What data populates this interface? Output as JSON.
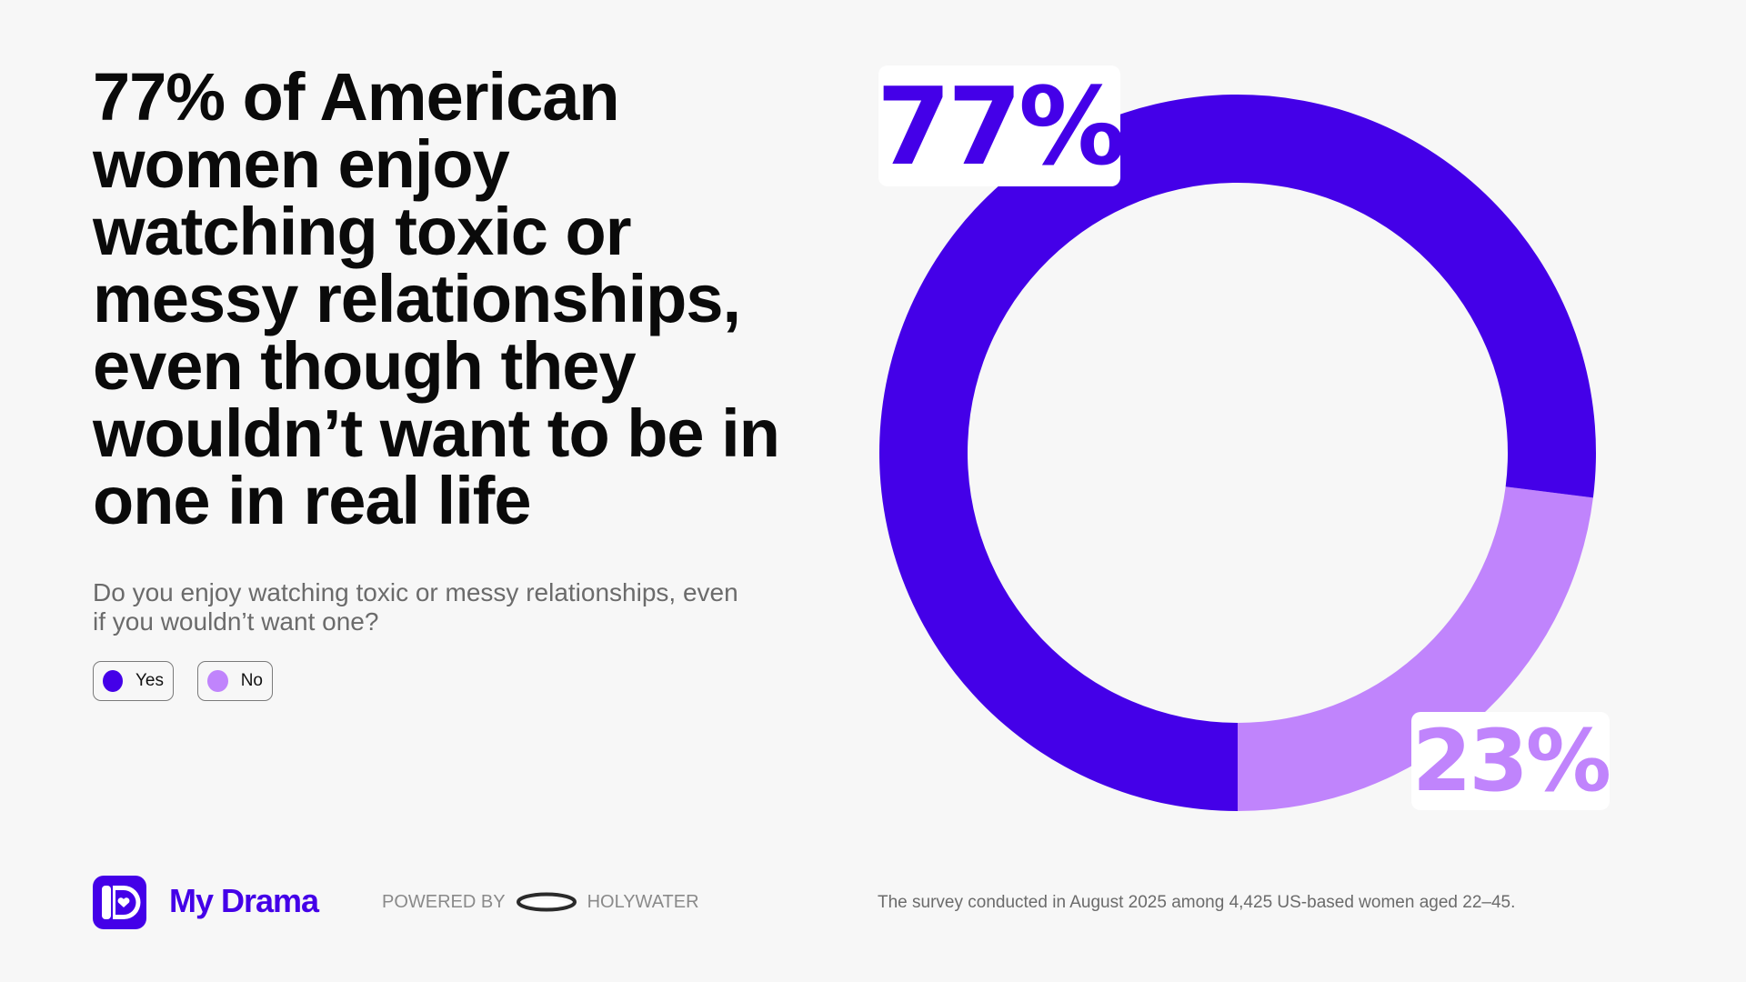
{
  "headline": "77% of American women enjoy watching toxic or messy relationships, even though they wouldn’t want to be in one in real life",
  "question": "Do you enjoy watching toxic or messy relationships, even if you wouldn’t want one?",
  "legend": [
    {
      "label": "Yes",
      "color": "#4400e8"
    },
    {
      "label": "No",
      "color": "#c084fc"
    }
  ],
  "chart_data": {
    "type": "pie",
    "title": "Do you enjoy watching toxic or messy relationships, even if you wouldn’t want one?",
    "categories": [
      "Yes",
      "No"
    ],
    "values": [
      77,
      23
    ],
    "colors": [
      "#4400e8",
      "#c084fc"
    ],
    "data_labels": [
      "77%",
      "23%"
    ]
  },
  "footer": {
    "brand": "My Drama",
    "powered_by": "POWERED BY",
    "partner": "HOLYWATER",
    "survey_note": "The survey conducted in August 2025 among 4,425 US-based women aged 22–45."
  }
}
